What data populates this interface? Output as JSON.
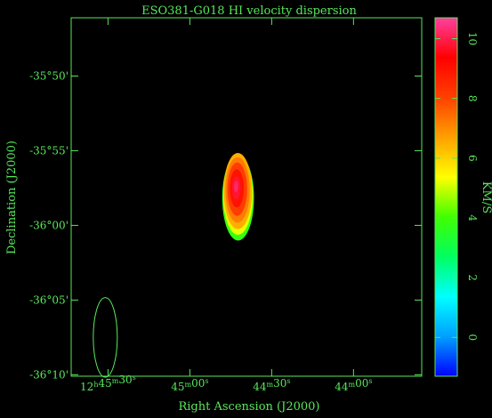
{
  "chart_data": {
    "type": "heatmap",
    "title": "ESO381-G018   HI velocity dispersion",
    "xlabel": "Right Ascension (J2000)",
    "ylabel": "Declination (J2000)",
    "colorbar_label": "KM/S",
    "x_ticks": [
      {
        "label": "12h45m30s",
        "seconds": 45330
      },
      {
        "label": "45m00s",
        "seconds": 45300
      },
      {
        "label": "44m30s",
        "seconds": 45270
      },
      {
        "label": "44m00s",
        "seconds": 45240
      }
    ],
    "xlim_seconds": [
      45343.5,
      45215
    ],
    "y_ticks": [
      {
        "label": "-35°50'",
        "arcmin": -2150
      },
      {
        "label": "-35°55'",
        "arcmin": -2155
      },
      {
        "label": "-36°00'",
        "arcmin": -2160
      },
      {
        "label": "-36°05'",
        "arcmin": -2165
      },
      {
        "label": "-36°10'",
        "arcmin": -2170
      }
    ],
    "ylim_arcmin": [
      -2170.1,
      -2146.1
    ],
    "colorbar_ticks": [
      0,
      2,
      4,
      6,
      8,
      10
    ],
    "colorbar_range": [
      -1.3,
      10.7
    ],
    "colormap": [
      "#0000ff",
      "#00a0ff",
      "#00ffff",
      "#00ff60",
      "#40ff00",
      "#ffff00",
      "#ffa000",
      "#ff4000",
      "#ff0000",
      "#ff40a0"
    ],
    "emission": {
      "center_ra_seconds": 45282.4,
      "center_dec_arcmin": -2157.7,
      "semi_major_arcmin": 2.55,
      "semi_minor_ra_seconds": 5.2,
      "peak_dispersion": 10.2,
      "edge_dispersion": 6.5
    },
    "beam": {
      "center_ra_seconds": 45331,
      "center_dec_arcmin": -2167.5,
      "major_arcmin": 3.2,
      "minor_ra_seconds": 4.4
    }
  },
  "colors": {
    "axis": "#58e85a",
    "background": "#000000"
  }
}
